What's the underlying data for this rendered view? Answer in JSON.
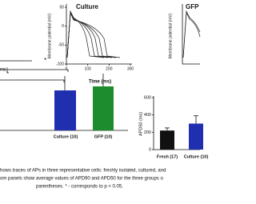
{
  "panels": {
    "left_partial": {
      "x_label": "ms)"
    },
    "culture_traces": {
      "title": "Culture",
      "y_label": "Membrane potential (mV)",
      "x_label": "Time (ms)",
      "ylim": [
        -100,
        50
      ],
      "yticks": [
        50,
        0,
        -50,
        -100
      ],
      "xlim": [
        0,
        300
      ],
      "xticks": [
        0,
        100,
        200,
        300
      ]
    },
    "gfp_traces": {
      "title": "GFP",
      "y_label": "Membrane potential (mV)"
    },
    "apd90_bars": {
      "categories": [
        "Culture (10)",
        "GFP (10)"
      ],
      "colors": [
        "#1f2fb0",
        "#1d8c2e"
      ],
      "significance": [
        "*",
        "*"
      ]
    },
    "apd50_bars": {
      "type": "bar",
      "y_label": "APD50 (ms)",
      "categories": [
        "Fresh (17)",
        "Culture (10)"
      ],
      "values": [
        220,
        300
      ],
      "errors": [
        30,
        90
      ],
      "colors": [
        "#111111",
        "#1f2fb0"
      ],
      "ylim": [
        0,
        600
      ],
      "yticks": [
        0,
        200,
        400,
        600
      ]
    }
  },
  "caption": [
    "hows traces of APs in three representative cells: freshly isolated, cultured, and",
    "om panels show average values of APD90 and APD50 for the three groups o",
    "parentheses. * - corresponds to p < 0.05."
  ]
}
